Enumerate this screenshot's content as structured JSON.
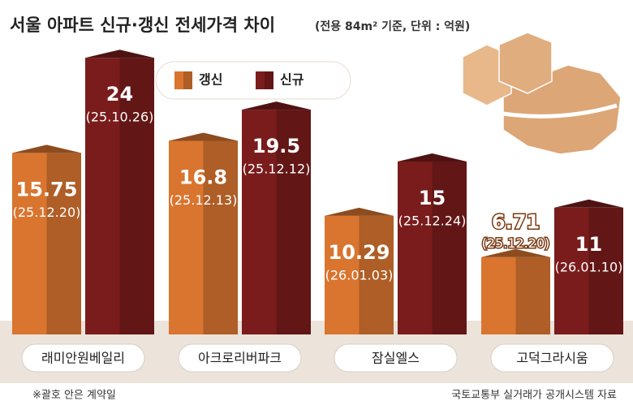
{
  "chart_data": {
    "type": "bar3d",
    "title": "서울 아파트 신규·갱신 전세가격 차이",
    "subtitle": "(전용 84m² 기준, 단위 : 억원)",
    "categories": [
      "래미안원베일리",
      "아크로리버파크",
      "잠실엘스",
      "고덕그라시움"
    ],
    "series": [
      {
        "name": "갱신",
        "color": "#d9752f",
        "values": [
          15.75,
          16.8,
          10.29,
          6.71
        ],
        "dates": [
          "(25.12.20)",
          "(25.12.13)",
          "(26.01.03)",
          "(25.12.20)"
        ]
      },
      {
        "name": "신규",
        "color": "#7a1c1c",
        "values": [
          24,
          19.5,
          15,
          11
        ],
        "dates": [
          "(25.10.26)",
          "(25.12.12)",
          "(25.12.24)",
          "(26.01.10)"
        ]
      }
    ],
    "note": "※괄호 안은 계약일",
    "source": "국토교통부 실거래가 공개시스템 자료"
  }
}
